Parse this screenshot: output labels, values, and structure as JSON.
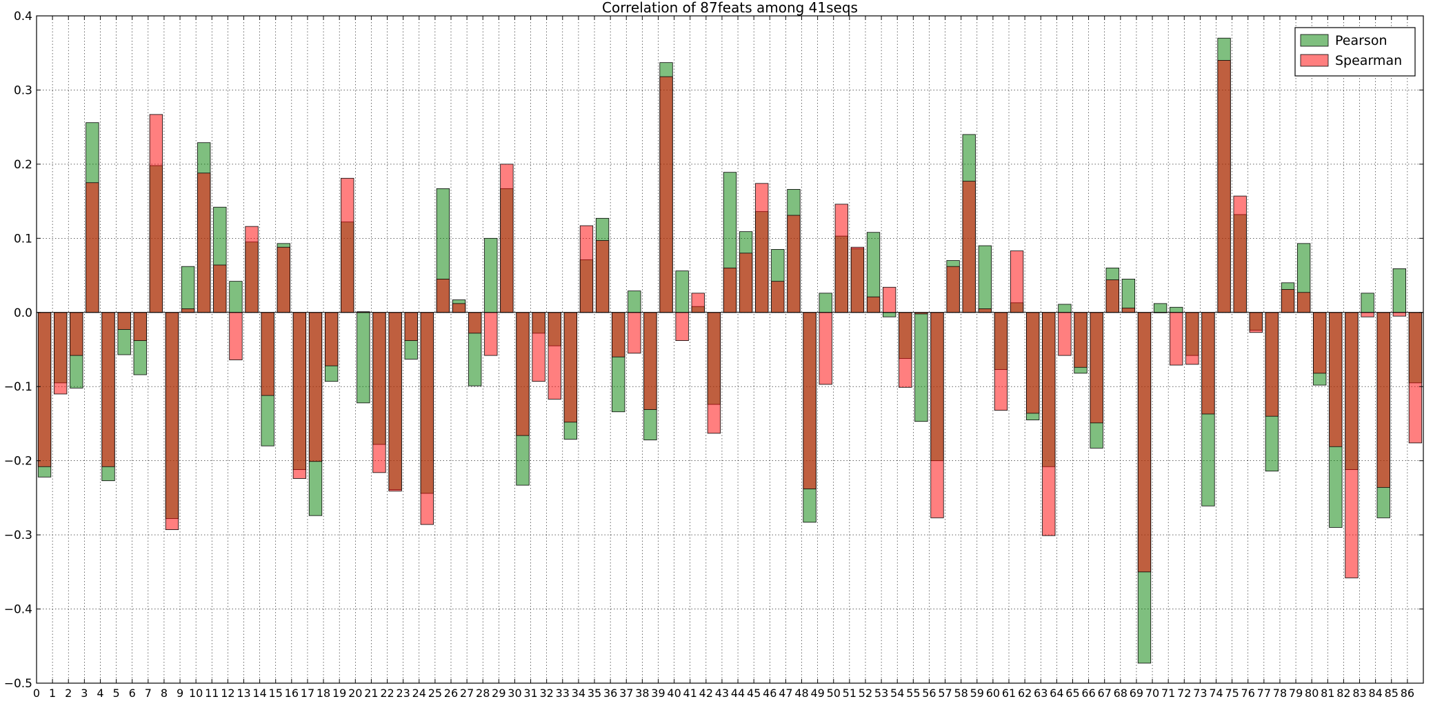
{
  "chart_data": {
    "type": "bar",
    "title": "Correlation of 87feats among 41seqs",
    "xlabel": "",
    "ylabel": "",
    "ylim": [
      -0.5,
      0.4
    ],
    "yticks": [
      -0.5,
      -0.4,
      -0.3,
      -0.2,
      -0.1,
      0.0,
      0.1,
      0.2,
      0.3,
      0.4
    ],
    "ytick_labels": [
      "−0.5",
      "−0.4",
      "−0.3",
      "−0.2",
      "−0.1",
      "0.0",
      "0.1",
      "0.2",
      "0.3",
      "0.4"
    ],
    "grid": true,
    "legend_position": "top-right",
    "categories": [
      "0",
      "1",
      "2",
      "3",
      "4",
      "5",
      "6",
      "7",
      "8",
      "9",
      "10",
      "11",
      "12",
      "13",
      "14",
      "15",
      "16",
      "17",
      "18",
      "19",
      "20",
      "21",
      "22",
      "23",
      "24",
      "25",
      "26",
      "27",
      "28",
      "29",
      "30",
      "31",
      "32",
      "33",
      "34",
      "35",
      "36",
      "37",
      "38",
      "39",
      "40",
      "41",
      "42",
      "43",
      "44",
      "45",
      "46",
      "47",
      "48",
      "49",
      "50",
      "51",
      "52",
      "53",
      "54",
      "55",
      "56",
      "57",
      "58",
      "59",
      "60",
      "61",
      "62",
      "63",
      "64",
      "65",
      "66",
      "67",
      "68",
      "69",
      "70",
      "71",
      "72",
      "73",
      "74",
      "75",
      "76",
      "77",
      "78",
      "79",
      "80",
      "81",
      "82",
      "83",
      "84",
      "85",
      "86"
    ],
    "series": [
      {
        "name": "Pearson",
        "color": "#008000",
        "values": [
          -0.222,
          -0.095,
          -0.102,
          0.256,
          -0.227,
          -0.057,
          -0.084,
          0.198,
          -0.278,
          0.062,
          0.229,
          0.142,
          0.042,
          0.095,
          -0.18,
          0.093,
          -0.212,
          -0.274,
          -0.093,
          0.122,
          -0.122,
          -0.178,
          -0.239,
          -0.063,
          -0.244,
          0.167,
          0.017,
          -0.099,
          0.1,
          0.167,
          -0.233,
          -0.028,
          -0.045,
          -0.171,
          0.071,
          0.127,
          -0.134,
          0.029,
          -0.172,
          0.337,
          0.056,
          0.008,
          -0.124,
          0.189,
          0.109,
          0.136,
          0.085,
          0.166,
          -0.283,
          0.026,
          0.103,
          0.086,
          0.108,
          -0.006,
          -0.062,
          -0.147,
          -0.2,
          0.07,
          0.24,
          0.09,
          -0.077,
          0.013,
          -0.145,
          -0.208,
          0.011,
          -0.082,
          -0.183,
          0.06,
          0.045,
          -0.473,
          0.012,
          0.007,
          -0.058,
          -0.261,
          0.37,
          0.132,
          -0.024,
          -0.214,
          0.04,
          0.093,
          -0.098,
          -0.29,
          -0.212,
          0.026,
          -0.277,
          0.059,
          -0.095
        ]
      },
      {
        "name": "Spearman",
        "color": "#ff0000",
        "values": [
          -0.208,
          -0.11,
          -0.058,
          0.175,
          -0.208,
          -0.023,
          -0.038,
          0.267,
          -0.293,
          0.005,
          0.188,
          0.064,
          -0.064,
          0.116,
          -0.112,
          0.088,
          -0.224,
          -0.201,
          -0.072,
          0.181,
          0.001,
          -0.216,
          -0.241,
          -0.038,
          -0.286,
          0.045,
          0.012,
          -0.028,
          -0.058,
          0.2,
          -0.166,
          -0.093,
          -0.117,
          -0.148,
          0.117,
          0.097,
          -0.06,
          -0.055,
          -0.131,
          0.318,
          -0.038,
          0.026,
          -0.163,
          0.06,
          0.08,
          0.174,
          0.042,
          0.131,
          -0.238,
          -0.097,
          0.146,
          0.088,
          0.021,
          0.034,
          -0.101,
          -0.002,
          -0.277,
          0.062,
          0.177,
          0.005,
          -0.132,
          0.083,
          -0.136,
          -0.301,
          -0.058,
          -0.074,
          -0.149,
          0.044,
          0.006,
          -0.35,
          0.0,
          -0.071,
          -0.07,
          -0.137,
          0.34,
          0.157,
          -0.027,
          -0.14,
          0.031,
          0.027,
          -0.082,
          -0.181,
          -0.358,
          -0.006,
          -0.236,
          -0.005,
          -0.176
        ]
      }
    ]
  }
}
